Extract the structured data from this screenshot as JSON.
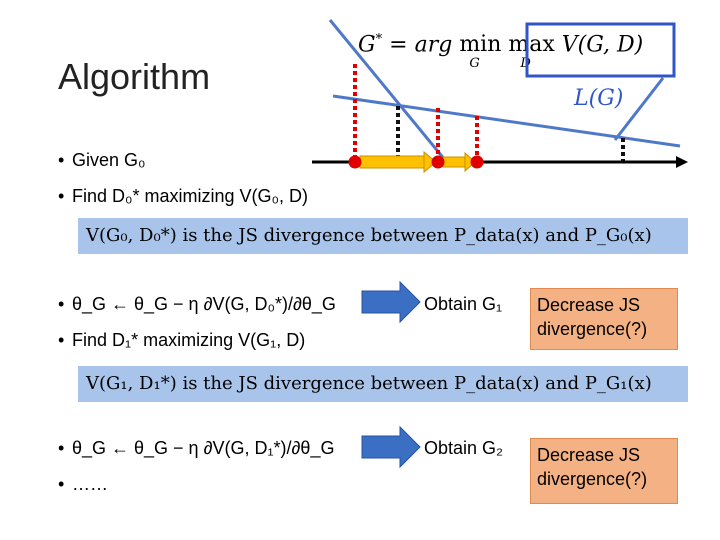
{
  "slide": {
    "title": "Algorithm",
    "formula": "G* = arg min max V(G, D)",
    "formula_subscripts": {
      "min": "G",
      "max": "D"
    },
    "loss_label": "L(G)"
  },
  "bullets_1": [
    {
      "text": "Given G₀"
    },
    {
      "text": "Find D₀* maximizing V(G₀, D)"
    }
  ],
  "bar_1": "V(G₀, D₀*) is the JS divergence between P_data(x) and P_G₀(x)",
  "bullets_2": [
    {
      "text": "θ_G ← θ_G − η ∂V(G, D₀*)/∂θ_G",
      "obtain": "Obtain G₁"
    },
    {
      "text": "Find D₁* maximizing V(G₁, D)"
    }
  ],
  "note_1": {
    "line1": "Decrease JS",
    "line2": "divergence(?)"
  },
  "bar_2": "V(G₁, D₁*) is the JS divergence between P_data(x) and P_G₁(x)",
  "bullets_3": [
    {
      "text": "θ_G ← θ_G − η ∂V(G, D₁*)/∂θ_G",
      "obtain": "Obtain G₂"
    },
    {
      "text": "……"
    }
  ],
  "note_2": {
    "line1": "Decrease JS",
    "line2": "divergence(?)"
  },
  "colors": {
    "accent_blue": "#2f55c8",
    "bar_blue": "#a9c4ea",
    "note_orange": "#f4b183",
    "red": "#e00000",
    "yellow": "#ffc000"
  }
}
